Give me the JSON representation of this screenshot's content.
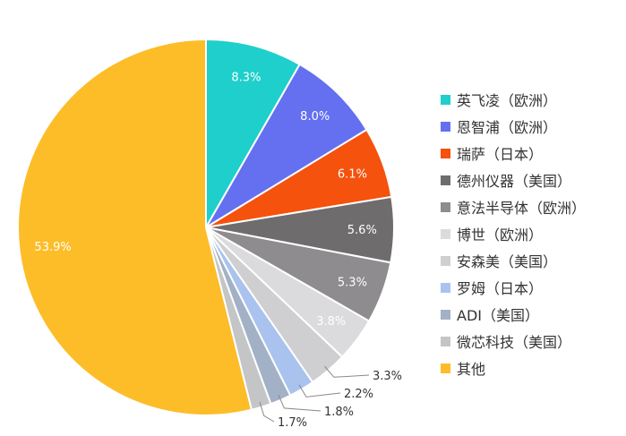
{
  "chart_data": {
    "type": "pie",
    "title": "",
    "legend_position": "right",
    "slices": [
      {
        "name": "英飞凌（欧洲）",
        "value": 8.3,
        "label": "8.3%",
        "color": "#1ECFCB",
        "label_inside": true
      },
      {
        "name": "恩智浦（欧洲）",
        "value": 8.0,
        "label": "8.0%",
        "color": "#6470F0",
        "label_inside": true
      },
      {
        "name": "瑞萨（日本）",
        "value": 6.1,
        "label": "6.1%",
        "color": "#F4520D",
        "label_inside": true
      },
      {
        "name": "德州仪器（美国）",
        "value": 5.6,
        "label": "5.6%",
        "color": "#6F6C6E",
        "label_inside": true
      },
      {
        "name": "意法半导体（欧洲）",
        "value": 5.3,
        "label": "5.3%",
        "color": "#8E8C8E",
        "label_inside": true
      },
      {
        "name": "博世（欧洲）",
        "value": 3.8,
        "label": "3.8%",
        "color": "#DBDBDD",
        "label_inside": true
      },
      {
        "name": "安森美（美国）",
        "value": 3.3,
        "label": "3.3%",
        "color": "#CFCFD1",
        "label_inside": false
      },
      {
        "name": "罗姆（日本）",
        "value": 2.2,
        "label": "2.2%",
        "color": "#A9C3EE",
        "label_inside": false
      },
      {
        "name": "ADI（美国）",
        "value": 1.8,
        "label": "1.8%",
        "color": "#A2B1C6",
        "label_inside": false
      },
      {
        "name": "微芯科技（美国）",
        "value": 1.7,
        "label": "1.7%",
        "color": "#C4C5C7",
        "label_inside": false
      },
      {
        "name": "其他",
        "value": 53.9,
        "label": "53.9%",
        "color": "#FDBD28",
        "label_inside": true
      }
    ]
  }
}
